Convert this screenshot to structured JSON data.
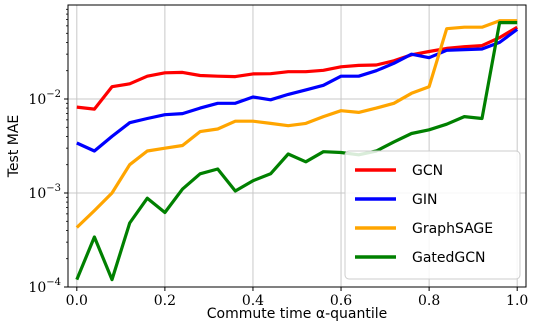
{
  "chart_data": {
    "type": "line",
    "title": "",
    "xlabel": "Commute time α-quantile",
    "ylabel": "Test MAE",
    "yscale": "log",
    "xlim": [
      -0.02,
      1.02
    ],
    "ylim": [
      0.0001,
      0.1
    ],
    "x_ticks": [
      0.0,
      0.2,
      0.4,
      0.6,
      0.8,
      1.0
    ],
    "x_tick_labels": [
      "0.0",
      "0.2",
      "0.4",
      "0.6",
      "0.8",
      "1.0"
    ],
    "y_ticks": [
      0.0001,
      0.001,
      0.01
    ],
    "y_tick_labels": [
      {
        "base": "10",
        "exp": "−4"
      },
      {
        "base": "10",
        "exp": "−3"
      },
      {
        "base": "10",
        "exp": "−2"
      }
    ],
    "grid": true,
    "legend_position": "bottom-right",
    "x": [
      0.0,
      0.04,
      0.08,
      0.12,
      0.16,
      0.2,
      0.24,
      0.28,
      0.32,
      0.36,
      0.4,
      0.44,
      0.48,
      0.52,
      0.56,
      0.6,
      0.64,
      0.68,
      0.72,
      0.76,
      0.8,
      0.84,
      0.88,
      0.92,
      0.96,
      1.0
    ],
    "series": [
      {
        "name": "GCN",
        "color": "#ff0000",
        "values": [
          0.0082,
          0.0078,
          0.0135,
          0.0145,
          0.0175,
          0.019,
          0.0192,
          0.0178,
          0.0175,
          0.0173,
          0.0185,
          0.0186,
          0.0195,
          0.0195,
          0.0202,
          0.022,
          0.0228,
          0.023,
          0.0255,
          0.0295,
          0.032,
          0.0345,
          0.036,
          0.037,
          0.045,
          0.058
        ]
      },
      {
        "name": "GIN",
        "color": "#0000ff",
        "values": [
          0.0034,
          0.0028,
          0.004,
          0.0056,
          0.0062,
          0.0068,
          0.007,
          0.008,
          0.009,
          0.009,
          0.0105,
          0.0098,
          0.0112,
          0.0125,
          0.014,
          0.0175,
          0.0175,
          0.02,
          0.024,
          0.03,
          0.0275,
          0.033,
          0.0335,
          0.034,
          0.04,
          0.055
        ]
      },
      {
        "name": "GraphSAGE",
        "color": "#ffa500",
        "values": [
          0.00043,
          0.00065,
          0.001,
          0.002,
          0.0028,
          0.003,
          0.0032,
          0.0045,
          0.0048,
          0.0058,
          0.0058,
          0.0055,
          0.0052,
          0.0055,
          0.0065,
          0.0075,
          0.0072,
          0.008,
          0.009,
          0.0115,
          0.0135,
          0.056,
          0.058,
          0.058,
          0.068,
          0.068
        ]
      },
      {
        "name": "GatedGCN",
        "color": "#008000",
        "values": [
          0.00012,
          0.00034,
          0.00012,
          0.00048,
          0.00088,
          0.00062,
          0.0011,
          0.0016,
          0.0018,
          0.00105,
          0.00135,
          0.0016,
          0.0026,
          0.00215,
          0.00275,
          0.0027,
          0.00255,
          0.0028,
          0.0035,
          0.0043,
          0.0047,
          0.0054,
          0.0065,
          0.0062,
          0.065,
          0.065
        ]
      }
    ]
  }
}
